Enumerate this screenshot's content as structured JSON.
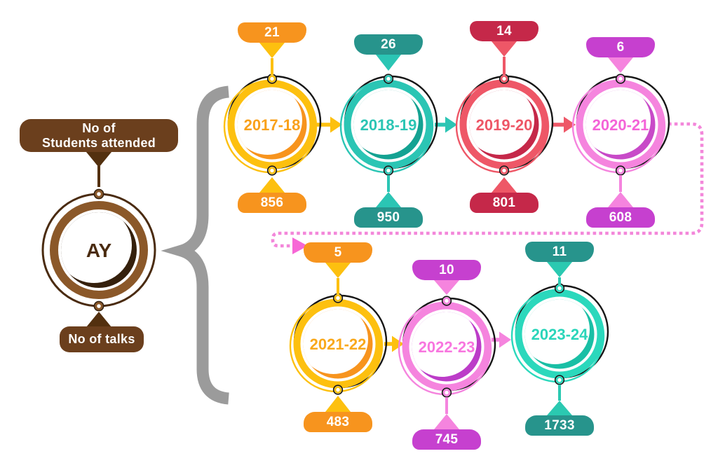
{
  "background": "#FFFFFF",
  "brace_color": "#9B9B9B",
  "outline_ring_color": "#161616",
  "legend": {
    "top_banner_line1": "No of",
    "top_banner_line2": "Students attended",
    "center_label": "AY",
    "bottom_banner_label": "No of talks",
    "colors": {
      "banner": "#6B3F1D",
      "connector": "#53300F",
      "ring": "#8B5829",
      "orbit": "#4A2B10",
      "crescent": "#35200C",
      "label": "#4A2B10"
    }
  },
  "years": [
    {
      "label": "2017-18",
      "top_value": "21",
      "bottom_value": "856",
      "colors": {
        "badge": "#F7941E",
        "accent": "#FDC00F",
        "ring": "#FDC00F",
        "crescent": "#F7941E",
        "label": "#F9A11B"
      }
    },
    {
      "label": "2018-19",
      "top_value": "26",
      "bottom_value": "950",
      "colors": {
        "badge": "#27948C",
        "accent": "#2BC5B4",
        "ring": "#2BC5B4",
        "crescent": "#14A292",
        "label": "#2BC5B4"
      }
    },
    {
      "label": "2019-20",
      "top_value": "14",
      "bottom_value": "801",
      "colors": {
        "badge": "#C52849",
        "accent": "#EE5767",
        "ring": "#EE5767",
        "crescent": "#C52849",
        "label": "#EE5767"
      }
    },
    {
      "label": "2020-21",
      "top_value": "6",
      "bottom_value": "608",
      "colors": {
        "badge": "#C640CF",
        "accent": "#F584DE",
        "ring": "#F584DE",
        "crescent": "#C84AC8",
        "label": "#F464D8"
      }
    },
    {
      "label": "2021-22",
      "top_value": "5",
      "bottom_value": "483",
      "colors": {
        "badge": "#F7941E",
        "accent": "#FDC00F",
        "ring": "#FDC00F",
        "crescent": "#F7941E",
        "label": "#F9A81B"
      }
    },
    {
      "label": "2022-23",
      "top_value": "10",
      "bottom_value": "745",
      "colors": {
        "badge": "#C640CF",
        "accent": "#F584DE",
        "ring": "#F584DE",
        "crescent": "#BC3CC8",
        "label": "#F876DF"
      }
    },
    {
      "label": "2023-24",
      "top_value": "11",
      "bottom_value": "1733",
      "colors": {
        "badge": "#27948C",
        "accent": "#2BC9B1",
        "ring": "#2BD8BC",
        "crescent": "#1ABFA5",
        "label": "#2BD5BA"
      }
    }
  ],
  "flow_arrows": [
    {
      "from": "2017-18",
      "to": "2018-19",
      "color": "#FDC00F"
    },
    {
      "from": "2018-19",
      "to": "2019-20",
      "color": "#2BC5B4"
    },
    {
      "from": "2019-20",
      "to": "2020-21",
      "color": "#EE5767"
    },
    {
      "from": "2021-22",
      "to": "2022-23",
      "color": "#FDC00F"
    },
    {
      "from": "2022-23",
      "to": "2023-24",
      "color": "#F584DE"
    }
  ],
  "dotted_connector": {
    "from": "2020-21",
    "to": "2021-22",
    "line_color": "#F387DA",
    "arrow_color": "#F767D6"
  }
}
